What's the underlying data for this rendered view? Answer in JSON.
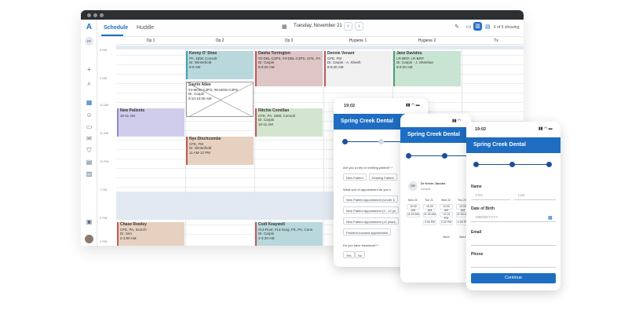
{
  "tabs": {
    "schedule": "Schedule",
    "huddle": "Huddle"
  },
  "date": "Tuesday, November 21",
  "showing": "6 of 6 showing",
  "avatar_initials": "FP",
  "columns": [
    "Op 1",
    "Op 2",
    "Op 3",
    "Hygiene 1",
    "Hygiene 2",
    "Tx"
  ],
  "times": [
    "8 AM",
    "9 AM",
    "10 AM",
    "11 AM",
    "12 PM",
    "1 PM",
    "2 PM",
    "3 PM"
  ],
  "appointments": [
    {
      "name": "Kenny O' Shea",
      "l1": "PA, 1BW, Consult",
      "l2": "Dr. Winterfield",
      "l3": "8-9 AM",
      "color": "#b9d8dc",
      "border": "#39a4b5"
    },
    {
      "name": "Dasha Terrington",
      "l1": "#2-DBL-C3PS, #3-DBL-C3PS, CFE, PA",
      "l2": "Dr. Carpin",
      "l3": "8-9:20 AM",
      "color": "#dec6c6",
      "border": "#c25a5a"
    },
    {
      "name": "Dennie Venant",
      "l1": "CFE, FM",
      "l2": "Dr. Carpin - A. Sheeh",
      "l3": "8-9:20 AM",
      "color": "#f0f0f0",
      "border": "#c25a5a"
    },
    {
      "name": "Jane Davidou",
      "l1": "LR-BRP, LR-BRP",
      "l2": "Dr. Carpin - J. Sheehan",
      "l3": "8-9:20 AM",
      "color": "#c8e4d2",
      "border": "#4aa56f"
    },
    {
      "name": "Sayrin Atlee",
      "l1": "#4-MOD-C3PS, #5-MOD-C3PS",
      "l2": "Dr. Carpin",
      "l3": "9:10-10:00 AM",
      "color": "#ffffff",
      "border": "#999999"
    },
    {
      "name": "New Patients",
      "l1": "10-11 AM",
      "l2": "",
      "l3": "",
      "color": "#cfcdeb",
      "border": "#8e88cf"
    },
    {
      "name": "Ritchie Comillan",
      "l1": "CFE, PA, 1BW, Consult",
      "l2": "Dr. Carpin",
      "l3": "10-11 AM",
      "color": "#d3e5ce",
      "border": "#c25a5a"
    },
    {
      "name": "Nye Dinchcombe",
      "l1": "CFE, FM",
      "l2": "Dr. Winterfield",
      "l3": "11 AM-12 PM",
      "color": "#e6d1c0",
      "border": "#c25a5a"
    },
    {
      "name": "Chase Rowley",
      "l1": "CFE, PA, Scorch",
      "l2": "Dr. Sen",
      "l3": "2-3:00 AM",
      "color": "#e6d1c0",
      "border": "#c25a5a"
    },
    {
      "name": "Codi Keaywell",
      "l1": "#13-Root, #14-Surg, FE, PA, Cons",
      "l2": "Dr. Carpin",
      "l3": "2-3:20 AM",
      "color": "#b9d8dc",
      "border": "#c25a5a"
    }
  ],
  "phone1": {
    "time": "19:02",
    "title": "Spring Creek Dental",
    "q1": "Are you a new or existing patient? *",
    "new": "New Patient",
    "existing": "Existing Patient",
    "q2": "What sort of appointment do you n",
    "opt1": "New Patient Appointment (Under 3",
    "opt2": "New Patient Appointment (3 - 12 ye",
    "opt3": "New Patient Appointment (12 years",
    "opt4": "Problem-focused appointment",
    "q3": "Do you have insurance? *",
    "yes": "Yes",
    "no": "No"
  },
  "phone2": {
    "time": "19:02",
    "title": "Spring Creek Dental",
    "doctor": "Dr Kevin Jacobs",
    "role": "Dentist",
    "initials": "DR",
    "days": [
      "Mon 20",
      "Tue 21",
      "Wed 22",
      "Thu 23"
    ],
    "slots": [
      [
        "10:00 AM",
        "10:00 AM",
        "10:00 AM",
        "10:00 AM"
      ],
      [
        "11:00 AM",
        "11:30 AM",
        "12:15 PM",
        "11:00 AM"
      ],
      [
        "",
        "2:30 PM",
        "2:30 PM",
        "1:00 PM"
      ],
      [
        "",
        "",
        "",
        "More"
      ]
    ],
    "more": "More"
  },
  "phone3": {
    "time": "19:02",
    "title": "Spring Creek Dental",
    "name_label": "Name",
    "first": "First",
    "last": "Last",
    "dob_label": "Date of Birth",
    "dob_ph": "MM/DD/YYYY",
    "email_label": "Email",
    "phone_label": "Phone",
    "continue": "Continue"
  }
}
